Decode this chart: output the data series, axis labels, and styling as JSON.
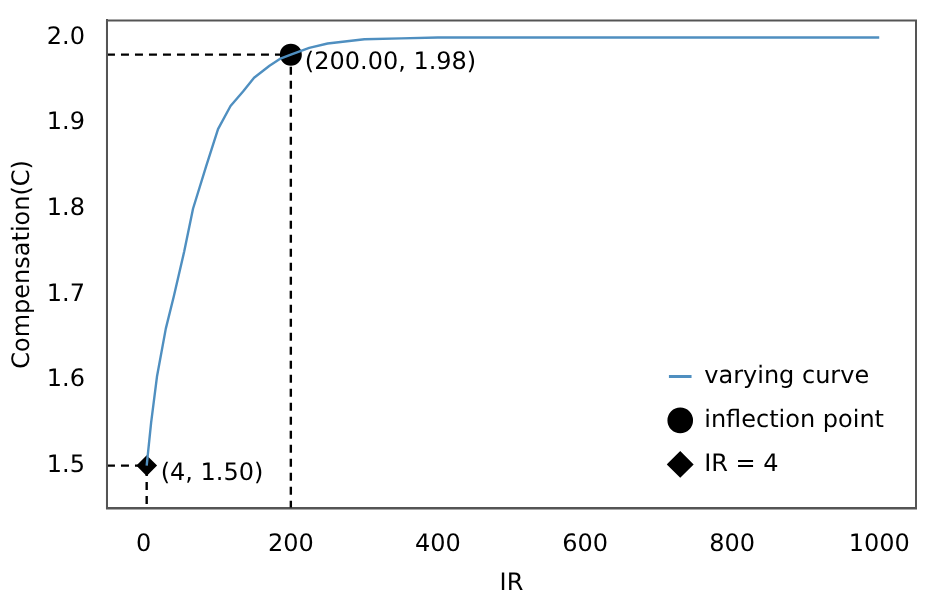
{
  "chart_data": {
    "type": "line",
    "xlabel": "IR",
    "ylabel": "Compensation(C)",
    "xlim": [
      -50,
      1050
    ],
    "ylim": [
      1.45,
      2.02
    ],
    "xticks": [
      0,
      200,
      400,
      600,
      800,
      1000
    ],
    "yticks": [
      {
        "value": 1.5,
        "label": "1.5"
      },
      1.6,
      1.7,
      1.8,
      1.9,
      {
        "value": 2,
        "label": "2.0"
      }
    ],
    "legend": "bottom right",
    "grid": false,
    "series": [
      {
        "name": "varying curve",
        "color": "#4f8fc0",
        "marker": "none",
        "x": [
          4,
          10,
          18,
          30,
          41,
          55,
          67,
          85,
          101,
          118,
          135,
          150,
          171,
          185,
          200,
          225,
          250,
          300,
          350,
          400,
          500,
          600,
          700,
          800,
          900,
          1000
        ],
        "values": [
          1.5,
          1.55,
          1.604,
          1.66,
          1.698,
          1.75,
          1.8,
          1.85,
          1.893,
          1.92,
          1.937,
          1.953,
          1.967,
          1.975,
          1.98,
          1.988,
          1.993,
          1.998,
          1.999,
          2.0,
          2.0,
          2.0,
          2.0,
          2.0,
          2.0,
          2.0
        ]
      },
      {
        "color": "#000000",
        "marker": "none",
        "line_style": "dashed",
        "x": [
          -50,
          200,
          200
        ],
        "values": [
          1.98,
          1.98,
          1.45
        ]
      },
      {
        "color": "#000000",
        "marker": "none",
        "line_style": "dashed",
        "x": [
          -50,
          4,
          4
        ],
        "values": [
          1.5,
          1.5,
          1.45
        ]
      },
      {
        "name": "inflection point",
        "type": "scatter",
        "color": "#000000",
        "marker": "circle",
        "x": [
          200
        ],
        "values": [
          1.98
        ]
      },
      {
        "name": "IR = 4",
        "type": "scatter",
        "color": "#000000",
        "marker": "diamond",
        "x": [
          4
        ],
        "values": [
          1.5
        ]
      }
    ],
    "annotations": [
      {
        "text": "(200.00, 1.98)",
        "x": 200,
        "y": 1.98
      },
      {
        "text": "(4, 1.50)",
        "x": 4,
        "y": 1.5
      }
    ]
  }
}
